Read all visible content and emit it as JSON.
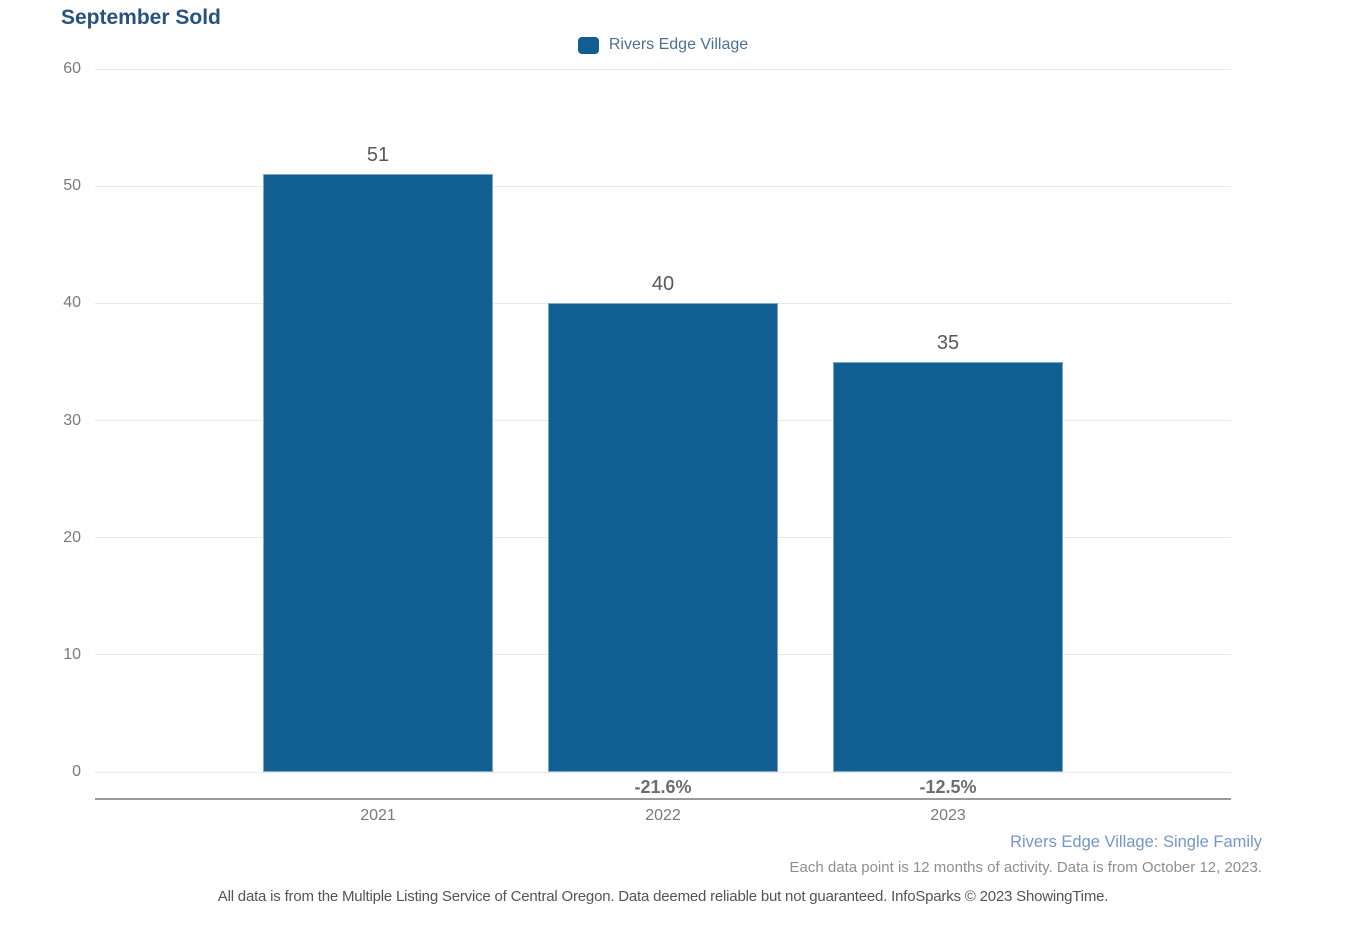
{
  "title": "September Sold",
  "legend": {
    "label": "Rivers Edge Village",
    "swatch_color": "#115f91"
  },
  "chart_data": {
    "type": "bar",
    "title": "September Sold",
    "categories": [
      "2021",
      "2022",
      "2023"
    ],
    "series": [
      {
        "name": "Rivers Edge Village",
        "values": [
          51,
          40,
          35
        ]
      }
    ],
    "value_labels": [
      "51",
      "40",
      "35"
    ],
    "pct_change_labels": [
      "",
      "-21.6%",
      "-12.5%"
    ],
    "xlabel": "",
    "ylabel": "",
    "ylim": [
      0,
      60
    ],
    "yticks": [
      0,
      10,
      20,
      30,
      40,
      50,
      60
    ],
    "grid": true,
    "legend_position": "top-center",
    "bar_color": "#115f91"
  },
  "footer": {
    "series_note": "Rivers Edge Village: Single Family",
    "data_note": "Each data point is 12 months of activity. Data is from October 12, 2023.",
    "disclaimer": "All data is from the Multiple Listing Service of Central Oregon. Data deemed reliable but not guaranteed. InfoSparks © 2023 ShowingTime."
  },
  "colors": {
    "bar": "#115f91",
    "title": "#27537f",
    "legend_text": "#4d7195",
    "footer_series_note": "#7496c8",
    "gridline": "#e8e8e8",
    "axis_line": "#9a9a9a",
    "tick_text": "#7a7a7a",
    "value_text": "#595959",
    "pct_text": "#6d6d6d"
  }
}
